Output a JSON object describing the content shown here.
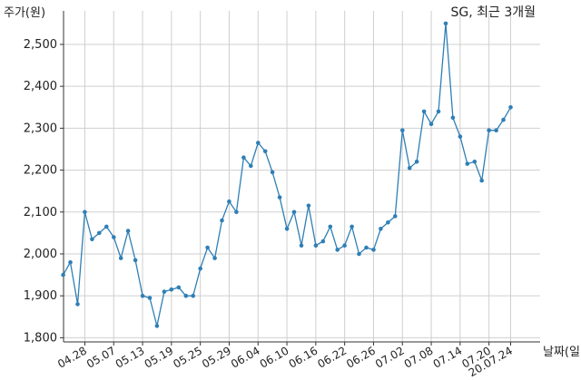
{
  "chart_data": {
    "type": "line",
    "title": "SG, 최근 3개월",
    "ylabel": "주가(원)",
    "xlabel": "날짜(일)",
    "ylim": [
      1790,
      2580
    ],
    "yticks": [
      1800,
      1900,
      2000,
      2100,
      2200,
      2300,
      2400,
      2500
    ],
    "ytick_labels": [
      "1,800",
      "1,900",
      "2,000",
      "2,100",
      "2,200",
      "2,300",
      "2,400",
      "2,500"
    ],
    "xtick_labels": [
      "04.28",
      "05.07",
      "05.13",
      "05.19",
      "05.25",
      "05.29",
      "06.04",
      "06.10",
      "06.16",
      "06.22",
      "06.26",
      "07.02",
      "07.08",
      "07.14",
      "07.20",
      "20.07.24"
    ],
    "xtick_indices": [
      3,
      7,
      11,
      15,
      19,
      23,
      27,
      31,
      35,
      39,
      43,
      47,
      51,
      55,
      59,
      62
    ],
    "grid": true,
    "line_color": "#2f7fb5",
    "series": [
      {
        "values": [
          1950,
          1980,
          1880,
          2100,
          2035,
          2050,
          2065,
          2040,
          1990,
          2055,
          1985,
          1900,
          1895,
          1828,
          1910,
          1915,
          1920,
          1900,
          1900,
          1965,
          2015,
          1990,
          2080,
          2125,
          2100,
          2230,
          2210,
          2265,
          2245,
          2195,
          2135,
          2060,
          2100,
          2020,
          2115,
          2020,
          2030,
          2065,
          2010,
          2020,
          2065,
          2000,
          2015,
          2010,
          2060,
          2075,
          2090,
          2295,
          2205,
          2220,
          2340,
          2310,
          2340,
          2550,
          2325,
          2280,
          2215,
          2220,
          2175,
          2295,
          2295,
          2320,
          2350
        ]
      }
    ]
  }
}
